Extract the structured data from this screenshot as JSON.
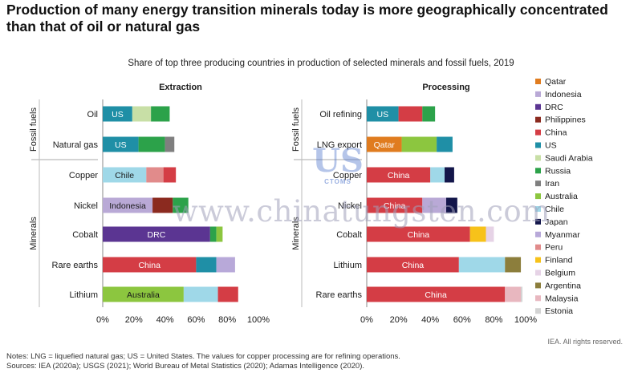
{
  "title": "Production of many energy transition minerals today is more geographically concentrated than that of oil or natural gas",
  "subtitle": "Share of top three producing countries in production of selected minerals and fossil fuels, 2019",
  "notes_line1": "Notes: LNG = liquefied natural gas; US = United States. The values for copper processing are for refining operations.",
  "notes_line2": "Sources: IEA (2020a); USGS (2021); World Bureau of Metal Statistics (2020); Adamas Intelligence (2020).",
  "copyright": "IEA. All rights reserved.",
  "watermark": {
    "text": "www.chinatungsten.com",
    "logo_mark": "US",
    "logo_text": "CTOMS"
  },
  "colors": {
    "Qatar": "#e07c1f",
    "Indonesia": "#b9a9d6",
    "DRC": "#5b3592",
    "Philippines": "#8b2a1f",
    "China": "#d43d45",
    "US": "#1f8fa6",
    "Saudi Arabia": "#c8dfa6",
    "Russia": "#2ca24a",
    "Iran": "#7f7f7f",
    "Australia": "#8cc63f",
    "Chile": "#9fd8e8",
    "Japan": "#13164a",
    "Myanmar": "#b8a9d9",
    "Peru": "#e18b8b",
    "Finland": "#f7c21a",
    "Belgium": "#e6d3e6",
    "Argentina": "#8c7e3c",
    "Malaysia": "#e8b7bf",
    "Estonia": "#d3d3d3"
  },
  "chart_data": [
    {
      "type": "bar",
      "orientation": "horizontal",
      "stacked": true,
      "title": "Extraction",
      "xlim": [
        0,
        100
      ],
      "x_ticks": [
        "0%",
        "20%",
        "40%",
        "60%",
        "80%",
        "100%"
      ],
      "group_labels": [
        "Fossil fuels",
        "Minerals"
      ],
      "categories": [
        {
          "label": "Oil",
          "group": "Fossil fuels",
          "segments": [
            {
              "country": "US",
              "value": 19,
              "label": "US"
            },
            {
              "country": "Saudi Arabia",
              "value": 12
            },
            {
              "country": "Russia",
              "value": 12
            }
          ]
        },
        {
          "label": "Natural gas",
          "group": "Fossil fuels",
          "segments": [
            {
              "country": "US",
              "value": 23,
              "label": "US"
            },
            {
              "country": "Russia",
              "value": 17
            },
            {
              "country": "Iran",
              "value": 6
            }
          ]
        },
        {
          "label": "Copper",
          "group": "Minerals",
          "segments": [
            {
              "country": "Chile",
              "value": 28,
              "label": "Chile"
            },
            {
              "country": "Peru",
              "value": 11
            },
            {
              "country": "China",
              "value": 8
            }
          ]
        },
        {
          "label": "Nickel",
          "group": "Minerals",
          "segments": [
            {
              "country": "Indonesia",
              "value": 32,
              "label": "Indonesia"
            },
            {
              "country": "Philippines",
              "value": 13
            },
            {
              "country": "Russia",
              "value": 10
            }
          ]
        },
        {
          "label": "Cobalt",
          "group": "Minerals",
          "segments": [
            {
              "country": "DRC",
              "value": 69,
              "label": "DRC"
            },
            {
              "country": "Russia",
              "value": 4
            },
            {
              "country": "Australia",
              "value": 4
            }
          ]
        },
        {
          "label": "Rare earths",
          "group": "Minerals",
          "segments": [
            {
              "country": "China",
              "value": 60,
              "label": "China"
            },
            {
              "country": "US",
              "value": 13
            },
            {
              "country": "Myanmar",
              "value": 12
            }
          ]
        },
        {
          "label": "Lithium",
          "group": "Minerals",
          "segments": [
            {
              "country": "Australia",
              "value": 52,
              "label": "Australia"
            },
            {
              "country": "Chile",
              "value": 22
            },
            {
              "country": "China",
              "value": 13
            }
          ]
        }
      ]
    },
    {
      "type": "bar",
      "orientation": "horizontal",
      "stacked": true,
      "title": "Processing",
      "xlim": [
        0,
        100
      ],
      "x_ticks": [
        "0%",
        "20%",
        "40%",
        "60%",
        "80%",
        "100%"
      ],
      "group_labels": [
        "Fossil fuels",
        "Minerals"
      ],
      "categories": [
        {
          "label": "Oil refining",
          "group": "Fossil fuels",
          "segments": [
            {
              "country": "US",
              "value": 20,
              "label": "US"
            },
            {
              "country": "China",
              "value": 15
            },
            {
              "country": "Russia",
              "value": 8
            }
          ]
        },
        {
          "label": "LNG export",
          "group": "Fossil fuels",
          "segments": [
            {
              "country": "Qatar",
              "value": 22,
              "label": "Qatar"
            },
            {
              "country": "Australia",
              "value": 22
            },
            {
              "country": "US",
              "value": 10
            }
          ]
        },
        {
          "label": "Copper",
          "group": "Minerals",
          "segments": [
            {
              "country": "China",
              "value": 40,
              "label": "China"
            },
            {
              "country": "Chile",
              "value": 9
            },
            {
              "country": "Japan",
              "value": 6
            }
          ]
        },
        {
          "label": "Nickel",
          "group": "Minerals",
          "segments": [
            {
              "country": "China",
              "value": 35,
              "label": "China"
            },
            {
              "country": "Indonesia",
              "value": 15
            },
            {
              "country": "Japan",
              "value": 7
            }
          ]
        },
        {
          "label": "Cobalt",
          "group": "Minerals",
          "segments": [
            {
              "country": "China",
              "value": 65,
              "label": "China"
            },
            {
              "country": "Finland",
              "value": 10
            },
            {
              "country": "Belgium",
              "value": 5
            }
          ]
        },
        {
          "label": "Lithium",
          "group": "Minerals",
          "segments": [
            {
              "country": "China",
              "value": 58,
              "label": "China"
            },
            {
              "country": "Chile",
              "value": 29
            },
            {
              "country": "Argentina",
              "value": 10
            }
          ]
        },
        {
          "label": "Rare earths",
          "group": "Minerals",
          "segments": [
            {
              "country": "China",
              "value": 87,
              "label": "China"
            },
            {
              "country": "Malaysia",
              "value": 10
            },
            {
              "country": "Estonia",
              "value": 1
            }
          ]
        }
      ]
    }
  ],
  "legend": [
    "Qatar",
    "Indonesia",
    "DRC",
    "Philippines",
    "China",
    "US",
    "Saudi Arabia",
    "Russia",
    "Iran",
    "Australia",
    "Chile",
    "Japan",
    "Myanmar",
    "Peru",
    "Finland",
    "Belgium",
    "Argentina",
    "Malaysia",
    "Estonia"
  ]
}
